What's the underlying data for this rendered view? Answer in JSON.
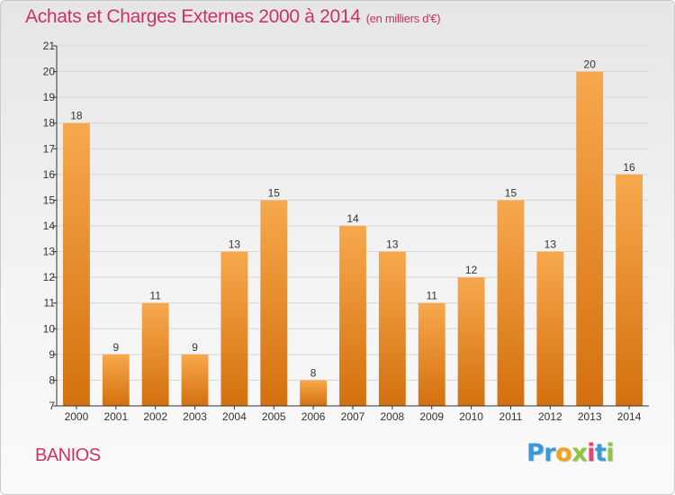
{
  "title": "Achats et Charges Externes 2000 à 2014",
  "subtitle": "(en milliers d'€)",
  "commune": "BANIOS",
  "logo": {
    "letters": [
      "P",
      "r",
      "o",
      "x",
      "i",
      "t",
      "i"
    ],
    "colors": [
      "#3a9ad9",
      "#3a9ad9",
      "#f4a11a",
      "#8cc63f",
      "#e0457b",
      "#3a9ad9",
      "#8cc63f"
    ]
  },
  "colors": {
    "title": "#d0325f",
    "bar_top": "#f7a84d",
    "bar_bottom": "#d4700e",
    "axis": "#333333",
    "grid": "#d6d6d6"
  },
  "chart_data": {
    "type": "bar",
    "title": "Achats et Charges Externes 2000 à 2014",
    "subtitle": "(en milliers d'€)",
    "categories": [
      "2000",
      "2001",
      "2002",
      "2003",
      "2004",
      "2005",
      "2006",
      "2007",
      "2008",
      "2009",
      "2010",
      "2011",
      "2012",
      "2013",
      "2014"
    ],
    "values": [
      18,
      9,
      11,
      9,
      13,
      15,
      8,
      14,
      13,
      11,
      12,
      15,
      13,
      20,
      16
    ],
    "ylim": [
      7,
      21
    ],
    "yticks": [
      7,
      8,
      9,
      10,
      11,
      12,
      13,
      14,
      15,
      16,
      17,
      18,
      19,
      20,
      21
    ],
    "grid": true,
    "data_labels": true
  }
}
